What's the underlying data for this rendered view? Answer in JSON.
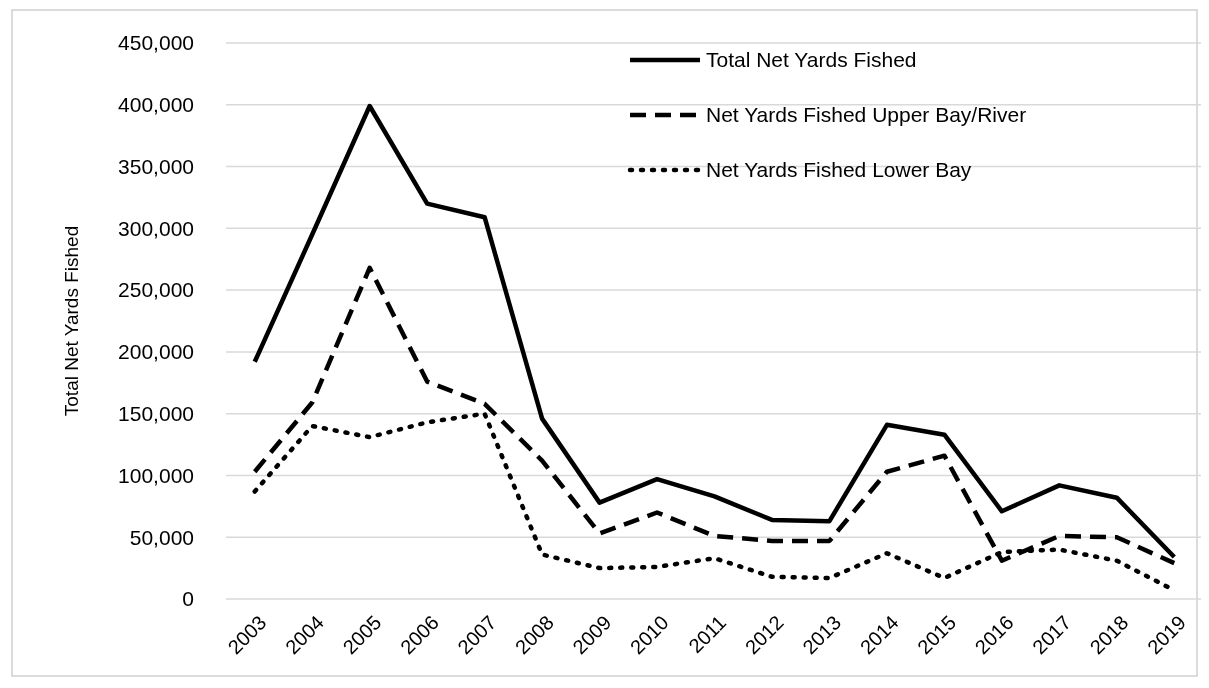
{
  "chart_data": {
    "type": "line",
    "ylabel": "Total Net Yards Fished",
    "categories": [
      "2003",
      "2004",
      "2005",
      "2006",
      "2007",
      "2008",
      "2009",
      "2010",
      "2011",
      "2012",
      "2013",
      "2014",
      "2015",
      "2016",
      "2017",
      "2018",
      "2019"
    ],
    "series": [
      {
        "name": "Total Net Yards Fished",
        "color": "#000000",
        "line_style": "solid",
        "values": [
          192000,
          295000,
          399000,
          320000,
          309000,
          146000,
          78000,
          97000,
          83000,
          64000,
          63000,
          141000,
          133000,
          71000,
          92000,
          82000,
          34000
        ]
      },
      {
        "name": "Net Yards Fished Upper Bay/River",
        "color": "#000000",
        "line_style": "dashed",
        "values": [
          103000,
          159000,
          268000,
          176000,
          158000,
          112000,
          53000,
          70000,
          51000,
          47000,
          47000,
          103000,
          116000,
          31000,
          51000,
          50000,
          29000
        ]
      },
      {
        "name": "Net Yards Fished Lower Bay",
        "color": "#000000",
        "line_style": "dotted",
        "values": [
          87000,
          140000,
          131000,
          143000,
          150000,
          36000,
          25000,
          26000,
          33000,
          18000,
          17000,
          37000,
          17000,
          38000,
          40000,
          31000,
          7000
        ]
      }
    ],
    "ylim": [
      0,
      450000
    ],
    "yticks": [
      {
        "value": 0,
        "label": "0"
      },
      {
        "value": 50000,
        "label": "50,000"
      },
      {
        "value": 100000,
        "label": "100,000"
      },
      {
        "value": 150000,
        "label": "150,000"
      },
      {
        "value": 200000,
        "label": "200,000"
      },
      {
        "value": 250000,
        "label": "250,000"
      },
      {
        "value": 300000,
        "label": "300,000"
      },
      {
        "value": 350000,
        "label": "350,000"
      },
      {
        "value": 400000,
        "label": "400,000"
      },
      {
        "value": 450000,
        "label": "450,000"
      }
    ],
    "grid": "y",
    "legend": "top right",
    "marker": "none"
  }
}
